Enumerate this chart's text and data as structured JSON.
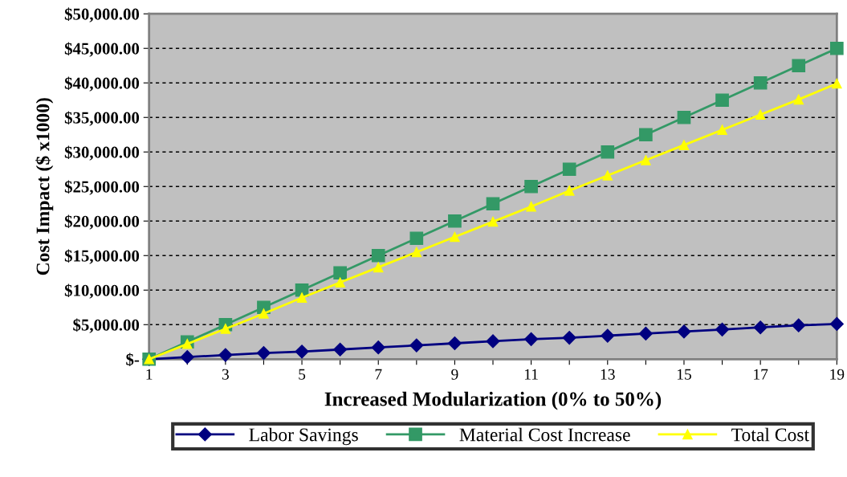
{
  "chart_data": {
    "type": "line",
    "xlabel": "Increased Modularization (0% to 50%)",
    "ylabel": "Cost Impact ($ x1000)",
    "categories": [
      "1",
      null,
      "3",
      null,
      "5",
      null,
      "7",
      null,
      "9",
      null,
      "11",
      null,
      "13",
      null,
      "15",
      null,
      "17",
      null,
      "19"
    ],
    "series": [
      {
        "name": "Labor Savings",
        "color": "#000080",
        "marker": "diamond",
        "values": [
          0,
          300,
          600,
          900,
          1100,
          1400,
          1700,
          2000,
          2300,
          2600,
          2900,
          3100,
          3400,
          3700,
          4000,
          4300,
          4600,
          4900,
          5100
        ]
      },
      {
        "name": "Material Cost Increase",
        "color": "#339966",
        "marker": "square",
        "values": [
          0,
          2500,
          5000,
          7500,
          10000,
          12500,
          15000,
          17500,
          20000,
          22500,
          25000,
          27500,
          30000,
          32500,
          35000,
          37500,
          40000,
          42500,
          45000
        ]
      },
      {
        "name": "Total Cost",
        "color": "#ffff00",
        "marker": "triangle",
        "values": [
          0,
          2200,
          4400,
          6600,
          8900,
          11100,
          13300,
          15500,
          17700,
          19900,
          22100,
          24400,
          26600,
          28800,
          31000,
          33200,
          35400,
          37600,
          39900
        ]
      }
    ],
    "ylim": [
      0,
      50000
    ],
    "yticks": [
      {
        "value": 0,
        "label": "$-"
      },
      {
        "value": 5000,
        "label": "$5,000.00"
      },
      {
        "value": 10000,
        "label": "$10,000.00"
      },
      {
        "value": 15000,
        "label": "$15,000.00"
      },
      {
        "value": 20000,
        "label": "$20,000.00"
      },
      {
        "value": 25000,
        "label": "$25,000.00"
      },
      {
        "value": 30000,
        "label": "$30,000.00"
      },
      {
        "value": 35000,
        "label": "$35,000.00"
      },
      {
        "value": 40000,
        "label": "$40,000.00"
      },
      {
        "value": 45000,
        "label": "$45,000.00"
      },
      {
        "value": 50000,
        "label": "$50,000.00"
      }
    ],
    "grid": "y",
    "legend": "bottom"
  }
}
